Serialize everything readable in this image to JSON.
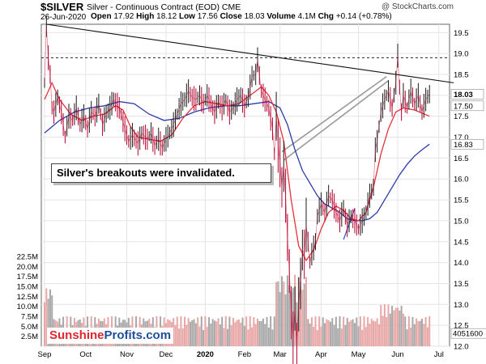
{
  "header": {
    "symbol": "$SILVER",
    "description": "Silver - Continuous Contract (EOD)",
    "exchange": "CME",
    "credit": "@ StockCharts.com",
    "date": "26-Jun-2020",
    "open_label": "Open",
    "open": "17.92",
    "high_label": "High",
    "high": "18.12",
    "low_label": "Low",
    "low": "17.56",
    "close_label": "Close",
    "close": "18.03",
    "volume_label": "Volume",
    "volume": "4.1M",
    "chg_label": "Chg",
    "chg": "+0.14 (+0.78%)"
  },
  "annotation": "Silver's breakouts were invalidated.",
  "brand": {
    "part1": "Sunshine",
    "part2": "Profits.com"
  },
  "colors": {
    "price": "#b8002e",
    "ma_short": "#e8303c",
    "ma_long": "#2c3aa8",
    "volume_up": "#e8a6a6",
    "volume_down": "#a8a8a8",
    "line": "#111111"
  },
  "chart_data": {
    "type": "line",
    "y_axis": {
      "min": 12.0,
      "max": 19.7,
      "ticks": [
        19.5,
        19.0,
        18.5,
        18.0,
        17.5,
        17.0,
        16.5,
        16.0,
        15.5,
        15.0,
        14.5,
        14.0,
        13.5,
        13.0,
        12.5,
        12.0
      ],
      "labels": [
        "19.5",
        "19.0",
        "18.5",
        "18.0",
        "17.5",
        "17.0",
        "16.5",
        "16.0",
        "15.5",
        "15.0",
        "14.5",
        "14.0",
        "13.5",
        "13.0",
        "12.5",
        "12.0"
      ]
    },
    "volume_axis": {
      "ticks": [
        22.5,
        20.0,
        17.5,
        15.0,
        12.5,
        10.0,
        7.5,
        5.0,
        2.5
      ],
      "labels": [
        "22.5M",
        "20.0M",
        "17.5M",
        "15.0M",
        "12.5M",
        "10.0M",
        "7.5M",
        "5.0M",
        "2.5M"
      ],
      "max": 23.5
    },
    "x_labels": [
      {
        "label": "Sep",
        "x": 0
      },
      {
        "label": "Oct",
        "x": 22
      },
      {
        "label": "Nov",
        "x": 44
      },
      {
        "label": "Dec",
        "x": 65
      },
      {
        "label": "2020",
        "x": 86
      },
      {
        "label": "Feb",
        "x": 107
      },
      {
        "label": "Mar",
        "x": 126
      },
      {
        "label": "Apr",
        "x": 148
      },
      {
        "label": "May",
        "x": 168
      },
      {
        "label": "Jun",
        "x": 189
      },
      {
        "label": "Jul",
        "x": 211
      }
    ],
    "last_x": 206,
    "price_labels": {
      "close": "18.03",
      "ma_short": "17.50",
      "ma_long": "16.83",
      "volume": "4051600"
    },
    "price_path": [
      [
        0,
        18.3
      ],
      [
        1,
        19.65
      ],
      [
        2,
        18.9
      ],
      [
        3,
        18.5
      ],
      [
        4,
        17.7
      ],
      [
        5,
        17.6
      ],
      [
        7,
        17.95
      ],
      [
        9,
        17.6
      ],
      [
        11,
        17.0
      ],
      [
        13,
        17.5
      ],
      [
        15,
        17.4
      ],
      [
        17,
        17.7
      ],
      [
        19,
        17.3
      ],
      [
        21,
        17.5
      ],
      [
        23,
        17.2
      ],
      [
        25,
        17.6
      ],
      [
        27,
        17.5
      ],
      [
        29,
        17.8
      ],
      [
        31,
        17.3
      ],
      [
        33,
        17.55
      ],
      [
        35,
        17.7
      ],
      [
        37,
        17.9
      ],
      [
        40,
        17.7
      ],
      [
        43,
        17.2
      ],
      [
        45,
        16.9
      ],
      [
        47,
        17.05
      ],
      [
        50,
        16.85
      ],
      [
        52,
        17.1
      ],
      [
        55,
        16.95
      ],
      [
        57,
        17.1
      ],
      [
        59,
        16.8
      ],
      [
        61,
        16.95
      ],
      [
        63,
        16.75
      ],
      [
        65,
        16.95
      ],
      [
        67,
        17.1
      ],
      [
        69,
        17.3
      ],
      [
        71,
        17.55
      ],
      [
        73,
        17.8
      ],
      [
        75,
        17.9
      ],
      [
        77,
        18.1
      ],
      [
        79,
        17.95
      ],
      [
        81,
        17.9
      ],
      [
        83,
        18.0
      ],
      [
        85,
        17.8
      ],
      [
        87,
        18.0
      ],
      [
        89,
        17.8
      ],
      [
        91,
        17.6
      ],
      [
        93,
        17.85
      ],
      [
        95,
        17.7
      ],
      [
        97,
        17.9
      ],
      [
        99,
        17.6
      ],
      [
        101,
        17.7
      ],
      [
        103,
        17.9
      ],
      [
        105,
        18.0
      ],
      [
        107,
        17.75
      ],
      [
        109,
        17.95
      ],
      [
        111,
        18.45
      ],
      [
        113,
        18.5
      ],
      [
        114,
        18.85
      ],
      [
        116,
        18.1
      ],
      [
        118,
        17.9
      ],
      [
        120,
        17.7
      ],
      [
        122,
        17.2
      ],
      [
        123,
        16.6
      ],
      [
        124,
        17.5
      ],
      [
        125,
        16.8
      ],
      [
        126,
        16.4
      ],
      [
        127,
        15.8
      ],
      [
        128,
        16.3
      ],
      [
        129,
        15.6
      ],
      [
        130,
        14.6
      ],
      [
        131,
        13.8
      ],
      [
        132,
        12.8
      ],
      [
        133,
        12.2
      ],
      [
        134,
        12.9
      ],
      [
        135,
        12.0
      ],
      [
        136,
        13.0
      ],
      [
        137,
        13.5
      ],
      [
        138,
        14.3
      ],
      [
        139,
        14.2
      ],
      [
        140,
        14.9
      ],
      [
        141,
        14.5
      ],
      [
        142,
        14.0
      ],
      [
        143,
        14.2
      ],
      [
        145,
        14.5
      ],
      [
        146,
        15.1
      ],
      [
        148,
        15.4
      ],
      [
        150,
        15.2
      ],
      [
        152,
        15.6
      ],
      [
        154,
        15.5
      ],
      [
        156,
        15.2
      ],
      [
        158,
        15.0
      ],
      [
        160,
        15.3
      ],
      [
        162,
        14.9
      ],
      [
        164,
        15.1
      ],
      [
        166,
        15.0
      ],
      [
        168,
        14.8
      ],
      [
        170,
        15.0
      ],
      [
        172,
        15.2
      ],
      [
        174,
        15.6
      ],
      [
        176,
        15.8
      ],
      [
        177,
        16.7
      ],
      [
        178,
        16.9
      ],
      [
        180,
        17.6
      ],
      [
        182,
        17.9
      ],
      [
        184,
        18.1
      ],
      [
        186,
        17.7
      ],
      [
        188,
        18.3
      ],
      [
        189,
        18.95
      ],
      [
        190,
        18.2
      ],
      [
        191,
        17.6
      ],
      [
        192,
        18.0
      ],
      [
        194,
        17.7
      ],
      [
        196,
        18.1
      ],
      [
        198,
        17.8
      ],
      [
        200,
        18.0
      ],
      [
        202,
        17.6
      ],
      [
        204,
        17.9
      ],
      [
        206,
        18.03
      ]
    ],
    "ma_short_path": [
      [
        0,
        17.9
      ],
      [
        4,
        18.3
      ],
      [
        8,
        17.9
      ],
      [
        14,
        17.55
      ],
      [
        20,
        17.4
      ],
      [
        26,
        17.5
      ],
      [
        32,
        17.55
      ],
      [
        38,
        17.75
      ],
      [
        42,
        17.65
      ],
      [
        46,
        17.25
      ],
      [
        50,
        17.0
      ],
      [
        56,
        16.95
      ],
      [
        62,
        16.9
      ],
      [
        68,
        17.05
      ],
      [
        74,
        17.45
      ],
      [
        80,
        17.75
      ],
      [
        86,
        17.85
      ],
      [
        92,
        17.8
      ],
      [
        98,
        17.75
      ],
      [
        104,
        17.8
      ],
      [
        110,
        18.0
      ],
      [
        116,
        18.2
      ],
      [
        120,
        18.0
      ],
      [
        124,
        17.6
      ],
      [
        128,
        16.9
      ],
      [
        132,
        15.5
      ],
      [
        136,
        14.4
      ],
      [
        140,
        14.05
      ],
      [
        144,
        14.3
      ],
      [
        148,
        14.8
      ],
      [
        152,
        15.2
      ],
      [
        156,
        15.35
      ],
      [
        160,
        15.25
      ],
      [
        164,
        15.05
      ],
      [
        168,
        15.0
      ],
      [
        172,
        15.2
      ],
      [
        176,
        15.8
      ],
      [
        180,
        16.6
      ],
      [
        184,
        17.2
      ],
      [
        188,
        17.6
      ],
      [
        192,
        17.7
      ],
      [
        198,
        17.65
      ],
      [
        206,
        17.5
      ]
    ],
    "ma_long_path": [
      [
        0,
        17.1
      ],
      [
        8,
        17.4
      ],
      [
        16,
        17.6
      ],
      [
        24,
        17.7
      ],
      [
        32,
        17.75
      ],
      [
        40,
        17.85
      ],
      [
        48,
        17.8
      ],
      [
        56,
        17.55
      ],
      [
        64,
        17.4
      ],
      [
        72,
        17.45
      ],
      [
        80,
        17.6
      ],
      [
        88,
        17.7
      ],
      [
        96,
        17.75
      ],
      [
        104,
        17.75
      ],
      [
        112,
        17.8
      ],
      [
        120,
        17.85
      ],
      [
        126,
        17.7
      ],
      [
        130,
        17.3
      ],
      [
        134,
        16.7
      ],
      [
        138,
        16.2
      ],
      [
        142,
        15.9
      ],
      [
        146,
        15.6
      ],
      [
        150,
        15.4
      ],
      [
        154,
        15.3
      ],
      [
        158,
        15.2
      ],
      [
        162,
        15.05
      ],
      [
        166,
        15.0
      ],
      [
        170,
        15.0
      ],
      [
        174,
        15.05
      ],
      [
        178,
        15.2
      ],
      [
        182,
        15.5
      ],
      [
        186,
        15.8
      ],
      [
        190,
        16.1
      ],
      [
        194,
        16.35
      ],
      [
        198,
        16.55
      ],
      [
        202,
        16.7
      ],
      [
        206,
        16.83
      ]
    ],
    "reference_lines": {
      "resistance_dashed": 18.9,
      "trendline": [
        [
          1,
          19.7
        ],
        [
          219,
          18.3
        ]
      ],
      "support_lines": [
        [
          [
            127,
            16.65
          ],
          [
            183,
            18.45
          ]
        ],
        [
          [
            128,
            16.45
          ],
          [
            184,
            18.35
          ]
        ]
      ],
      "small_trend": [
        [
          160,
          14.55
        ],
        [
          166,
          15.3
        ]
      ]
    }
  }
}
